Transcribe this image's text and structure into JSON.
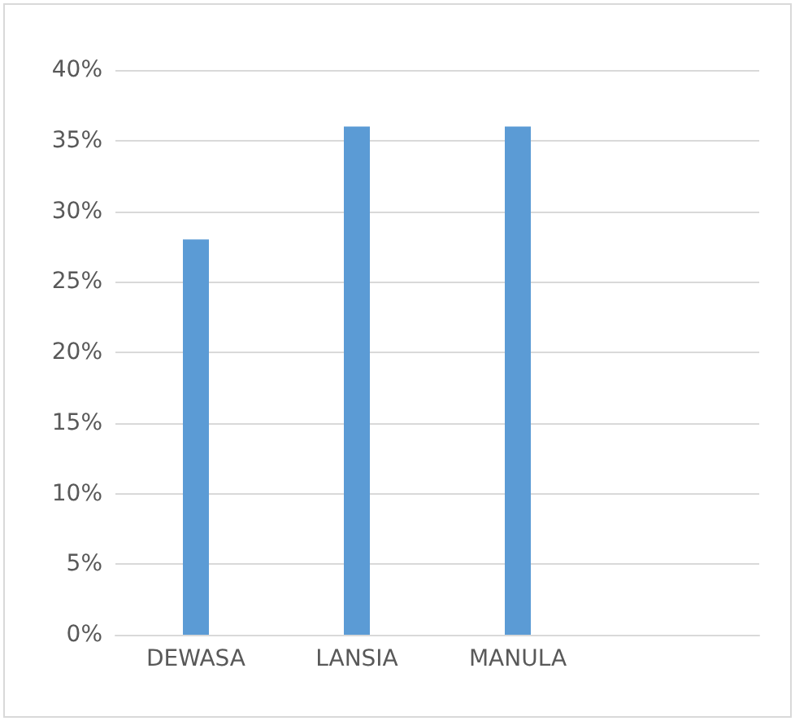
{
  "chart_data": {
    "type": "bar",
    "categories": [
      "DEWASA",
      "LANSIA",
      "MANULA",
      null
    ],
    "values": [
      28,
      36,
      36,
      null
    ],
    "color": "#5b9bd5",
    "ylim": [
      0,
      40
    ],
    "yticks": [
      {
        "value": 0,
        "label": "0%"
      },
      {
        "value": 5,
        "label": "5%"
      },
      {
        "value": 10,
        "label": "10%"
      },
      {
        "value": 15,
        "label": "15%"
      },
      {
        "value": 20,
        "label": "20%"
      },
      {
        "value": 25,
        "label": "25%"
      },
      {
        "value": 30,
        "label": "30%"
      },
      {
        "value": 35,
        "label": "35%"
      },
      {
        "value": 40,
        "label": "40%"
      }
    ],
    "grid": "y"
  }
}
